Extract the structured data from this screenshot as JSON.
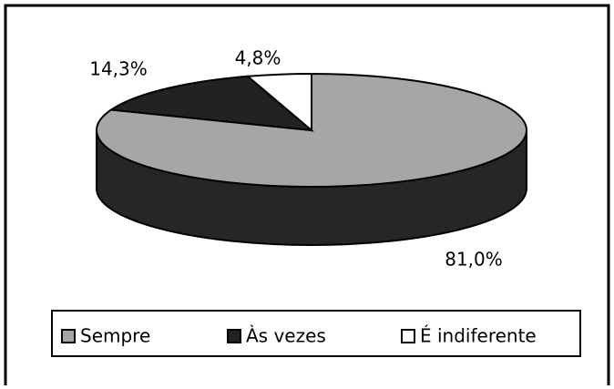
{
  "chart_data": {
    "type": "pie3d",
    "categories": [
      "Sempre",
      "Às vezes",
      "É indiferente"
    ],
    "values": [
      81.0,
      14.3,
      4.8
    ],
    "value_labels": [
      "81,0%",
      "14,3%",
      "4,8%"
    ],
    "colors": [
      "#a6a6a6",
      "#222222",
      "#ffffff"
    ],
    "legend": "bottom"
  }
}
